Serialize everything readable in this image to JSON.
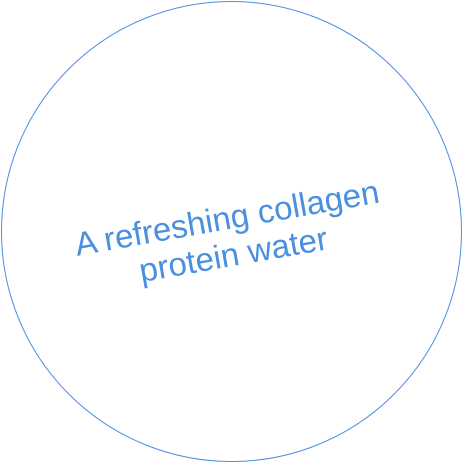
{
  "caption": {
    "line1": "A refreshing collagen",
    "line2": "protein water"
  },
  "colors": {
    "accent": "#4a8fe0",
    "background": "#ffffff"
  }
}
